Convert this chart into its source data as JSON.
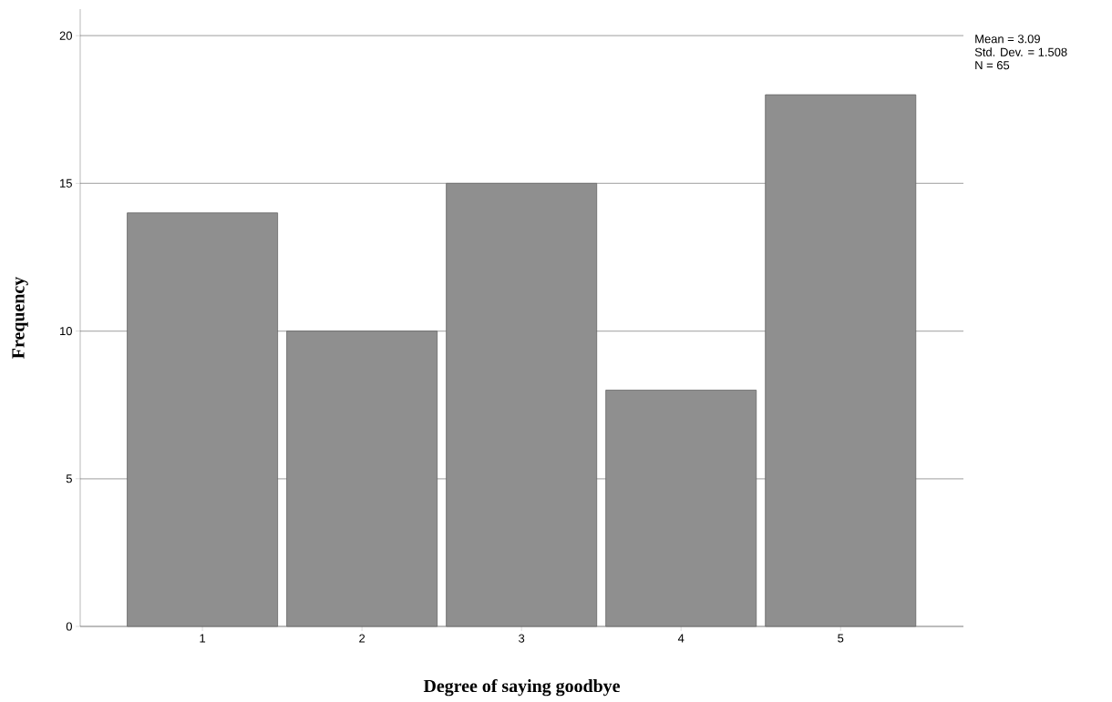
{
  "chart_data": {
    "type": "bar",
    "xlabel": "Degree of saying goodbye",
    "ylabel": "Frequency",
    "categories": [
      "1",
      "2",
      "3",
      "4",
      "5"
    ],
    "values": [
      14,
      10,
      15,
      8,
      18
    ],
    "color": "#8f8f8f",
    "ylim": [
      0,
      20.9
    ],
    "yticks": [
      0,
      5,
      10,
      15,
      20
    ],
    "grid": "y",
    "annotations": [
      "Mean = 3.09",
      "Std. Dev. = 1.508",
      "N = 65"
    ]
  }
}
